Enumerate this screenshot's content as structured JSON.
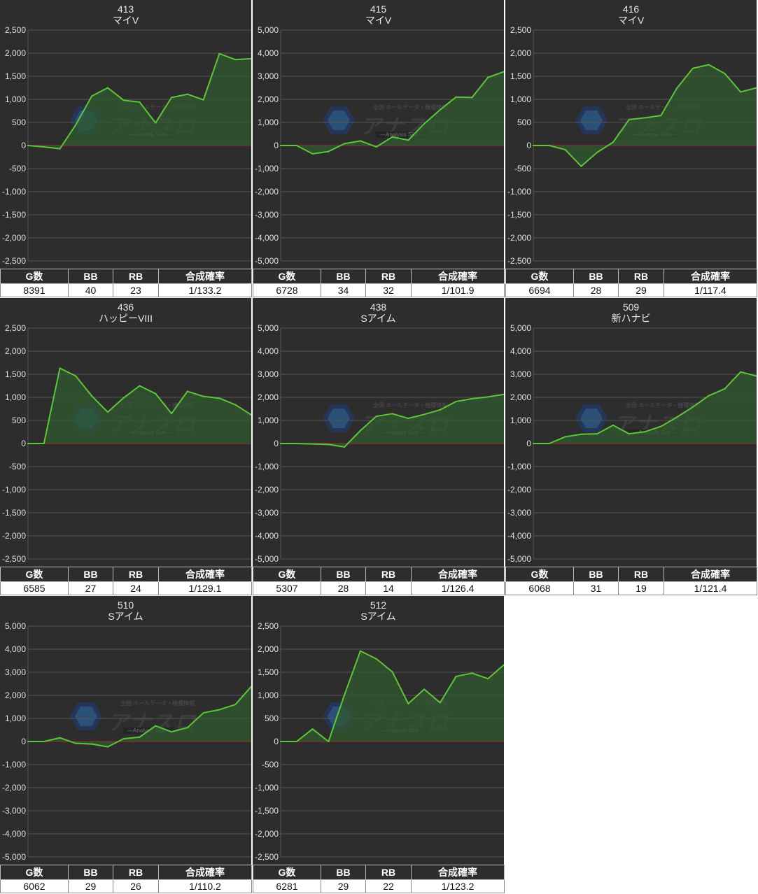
{
  "headers": {
    "games": "G数",
    "bb": "BB",
    "rb": "RB",
    "rate": "合成確率"
  },
  "watermark": {
    "top": "全国 ホールデータ・機種情報",
    "main": "アナスロ",
    "sub": "—Analysis Slot—"
  },
  "colors": {
    "background": "#2d2d2d",
    "line": "#5ec43a",
    "zero_line": "#cc2222",
    "grid": "#555555",
    "fill": "#2f5a2f"
  },
  "chart_data": [
    {
      "type": "area",
      "machine_no": "413",
      "model": "マイV",
      "y_ticks": [
        "2,500",
        "2,000",
        "1,500",
        "1,000",
        "500",
        "0",
        "-500",
        "-1,000",
        "-1,500",
        "-2,000",
        "-2,500"
      ],
      "ylim": [
        -2500,
        2500
      ],
      "values": [
        0,
        -30,
        -70,
        450,
        1070,
        1250,
        980,
        940,
        490,
        1040,
        1110,
        990,
        1990,
        1860,
        1880
      ],
      "stats": {
        "games": "8391",
        "bb": "40",
        "rb": "23",
        "rate": "1/133.2"
      }
    },
    {
      "type": "area",
      "machine_no": "415",
      "model": "マイV",
      "y_ticks": [
        "5,000",
        "4,000",
        "3,000",
        "2,000",
        "1,000",
        "0",
        "-1,000",
        "-2,000",
        "-3,000",
        "-4,000",
        "-5,000"
      ],
      "ylim": [
        -5000,
        5000
      ],
      "values": [
        0,
        0,
        -360,
        -260,
        80,
        200,
        -60,
        370,
        230,
        940,
        1550,
        2100,
        2080,
        2950,
        3200
      ],
      "stats": {
        "games": "6728",
        "bb": "34",
        "rb": "32",
        "rate": "1/101.9"
      }
    },
    {
      "type": "area",
      "machine_no": "416",
      "model": "マイV",
      "y_ticks": [
        "2,500",
        "2,000",
        "1,500",
        "1,000",
        "500",
        "0",
        "-500",
        "-1,000",
        "-1,500",
        "-2,000",
        "-2,500"
      ],
      "ylim": [
        -2500,
        2500
      ],
      "values": [
        0,
        0,
        -90,
        -450,
        -150,
        70,
        560,
        600,
        650,
        1240,
        1670,
        1750,
        1560,
        1160,
        1250
      ],
      "stats": {
        "games": "6694",
        "bb": "28",
        "rb": "29",
        "rate": "1/117.4"
      }
    },
    {
      "type": "area",
      "machine_no": "436",
      "model": "ハッピーVIII",
      "y_ticks": [
        "2,500",
        "2,000",
        "1,500",
        "1,000",
        "500",
        "0",
        "-500",
        "-1,000",
        "-1,500",
        "-2,000",
        "-2,500"
      ],
      "ylim": [
        -2500,
        2500
      ],
      "values": [
        0,
        0,
        1630,
        1460,
        1030,
        680,
        990,
        1250,
        1080,
        650,
        1130,
        1020,
        980,
        840,
        620
      ],
      "stats": {
        "games": "6585",
        "bb": "27",
        "rb": "24",
        "rate": "1/129.1"
      }
    },
    {
      "type": "area",
      "machine_no": "438",
      "model": "Sアイム",
      "y_ticks": [
        "5,000",
        "4,000",
        "3,000",
        "2,000",
        "1,000",
        "0",
        "-1,000",
        "-2,000",
        "-3,000",
        "-4,000",
        "-5,000"
      ],
      "ylim": [
        -5000,
        5000
      ],
      "values": [
        0,
        0,
        -20,
        -40,
        -150,
        560,
        1180,
        1290,
        1090,
        1260,
        1460,
        1820,
        1940,
        2020,
        2130
      ],
      "stats": {
        "games": "5307",
        "bb": "28",
        "rb": "14",
        "rate": "1/126.4"
      }
    },
    {
      "type": "area",
      "machine_no": "509",
      "model": "新ハナビ",
      "y_ticks": [
        "5,000",
        "4,000",
        "3,000",
        "2,000",
        "1,000",
        "0",
        "-1,000",
        "-2,000",
        "-3,000",
        "-4,000",
        "-5,000"
      ],
      "ylim": [
        -5000,
        5000
      ],
      "values": [
        0,
        0,
        290,
        400,
        420,
        790,
        420,
        510,
        740,
        1140,
        1580,
        2070,
        2370,
        3100,
        2920
      ],
      "stats": {
        "games": "6068",
        "bb": "31",
        "rb": "19",
        "rate": "1/121.4"
      }
    },
    {
      "type": "area",
      "machine_no": "510",
      "model": "Sアイム",
      "y_ticks": [
        "5,000",
        "4,000",
        "3,000",
        "2,000",
        "1,000",
        "0",
        "-1,000",
        "-2,000",
        "-3,000",
        "-4,000",
        "-5,000"
      ],
      "ylim": [
        -5000,
        5000
      ],
      "values": [
        0,
        0,
        160,
        -80,
        -110,
        -230,
        120,
        190,
        680,
        420,
        600,
        1240,
        1380,
        1600,
        2380
      ],
      "stats": {
        "games": "6062",
        "bb": "29",
        "rb": "26",
        "rate": "1/110.2"
      }
    },
    {
      "type": "area",
      "machine_no": "512",
      "model": "Sアイム",
      "y_ticks": [
        "2,500",
        "2,000",
        "1,500",
        "1,000",
        "500",
        "0",
        "-500",
        "-1,000",
        "-1,500",
        "-2,000",
        "-2,500"
      ],
      "ylim": [
        -2500,
        2500
      ],
      "values": [
        0,
        0,
        270,
        0,
        1010,
        1960,
        1790,
        1510,
        820,
        1130,
        840,
        1410,
        1480,
        1360,
        1660
      ],
      "stats": {
        "games": "6281",
        "bb": "29",
        "rb": "22",
        "rate": "1/123.2"
      }
    }
  ]
}
